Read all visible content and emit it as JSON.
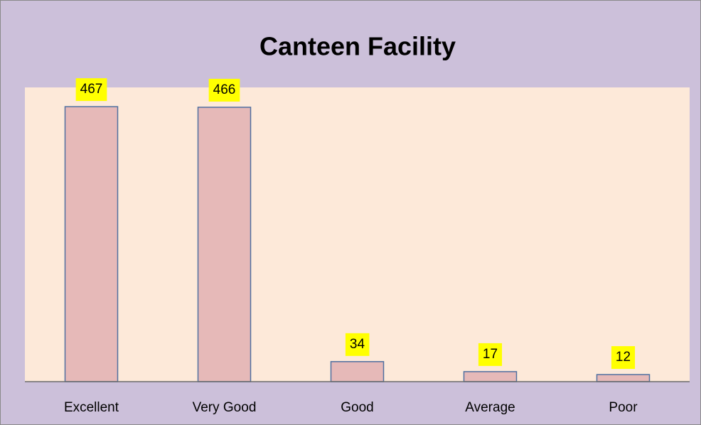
{
  "chart_data": {
    "type": "bar",
    "title": "Canteen Facility",
    "categories": [
      "Excellent",
      "Very Good",
      "Good",
      "Average",
      "Poor"
    ],
    "values": [
      467,
      466,
      34,
      17,
      12
    ],
    "color": "#e6b9b8"
  }
}
